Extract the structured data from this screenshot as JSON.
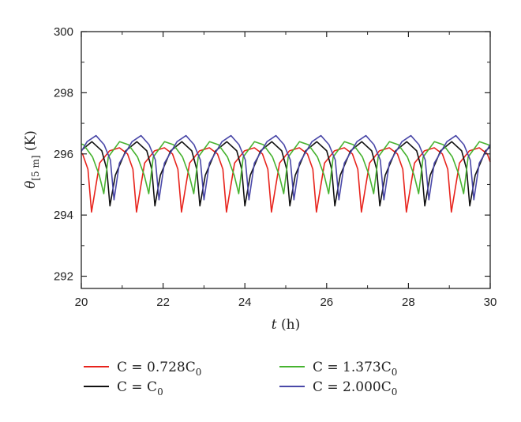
{
  "chart_data": {
    "type": "line",
    "title": "",
    "xlabel_var": "t",
    "xlabel_unit": " (h)",
    "ylabel_var": "θ",
    "ylabel_sub": "[5 m]",
    "ylabel_unit": " (K)",
    "xlim": [
      20,
      30
    ],
    "ylim": [
      291.6,
      300
    ],
    "xticks": [
      "20",
      "22",
      "24",
      "26",
      "28",
      "30"
    ],
    "yticks": [
      "292",
      "294",
      "296",
      "298",
      "300"
    ],
    "grid": false,
    "legend_position": "bottom",
    "series": [
      {
        "name_prefix": "C = 0.728C",
        "name_sub": "0",
        "color": "#e8231c",
        "period": 1.1,
        "phase": 0.25,
        "pattern": [
          [
            0,
            294.1
          ],
          [
            0.18,
            295.7
          ],
          [
            0.4,
            296.1
          ],
          [
            0.62,
            296.2
          ],
          [
            0.8,
            296.0
          ],
          [
            0.92,
            295.5
          ],
          [
            1.0,
            294.1
          ]
        ],
        "x": [
          20.0,
          20.25,
          20.43,
          20.65,
          20.87,
          21.05,
          21.17,
          21.35
        ],
        "values": [
          295.3,
          294.1,
          295.7,
          296.1,
          296.2,
          296.0,
          295.5,
          294.1
        ]
      },
      {
        "name_prefix": "C = C",
        "name_sub": "0",
        "color": "#111111",
        "period": 1.1,
        "phase": 0.7,
        "pattern": [
          [
            0,
            294.3
          ],
          [
            0.12,
            295.3
          ],
          [
            0.35,
            296.1
          ],
          [
            0.6,
            296.4
          ],
          [
            0.82,
            296.1
          ],
          [
            0.93,
            295.5
          ],
          [
            1.0,
            294.3
          ]
        ],
        "x": [
          20.0,
          20.3,
          20.54,
          20.7,
          20.82,
          21.05,
          21.3,
          21.52,
          21.8
        ],
        "values": [
          296.0,
          296.2,
          295.7,
          294.3,
          295.3,
          296.1,
          296.4,
          296.1,
          294.3
        ]
      },
      {
        "name_prefix": "C = 1.373C",
        "name_sub": "0",
        "color": "#46b32f",
        "period": 1.1,
        "phase": 0.55,
        "pattern": [
          [
            0,
            294.7
          ],
          [
            0.1,
            295.9
          ],
          [
            0.35,
            296.4
          ],
          [
            0.55,
            296.3
          ],
          [
            0.75,
            295.9
          ],
          [
            0.9,
            295.3
          ],
          [
            1.0,
            294.7
          ]
        ],
        "x": [
          20.0,
          20.35,
          20.55,
          20.65,
          20.9,
          21.1,
          21.3,
          21.45,
          21.65
        ],
        "values": [
          295.9,
          296.4,
          296.3,
          294.7,
          295.9,
          296.4,
          296.3,
          295.9,
          294.7
        ]
      },
      {
        "name_prefix": "C = 2.000C",
        "name_sub": "0",
        "color": "#4a48a8",
        "period": 1.1,
        "phase": 0.8,
        "pattern": [
          [
            0,
            294.5
          ],
          [
            0.12,
            295.7
          ],
          [
            0.4,
            296.4
          ],
          [
            0.6,
            296.6
          ],
          [
            0.78,
            296.3
          ],
          [
            0.92,
            295.8
          ],
          [
            1.0,
            294.5
          ]
        ],
        "x": [
          20.0,
          20.3,
          20.5,
          20.8,
          20.93,
          21.24,
          21.46,
          21.66,
          21.9
        ],
        "values": [
          296.1,
          296.5,
          296.1,
          294.5,
          295.7,
          296.4,
          296.6,
          296.3,
          294.5
        ]
      }
    ]
  }
}
